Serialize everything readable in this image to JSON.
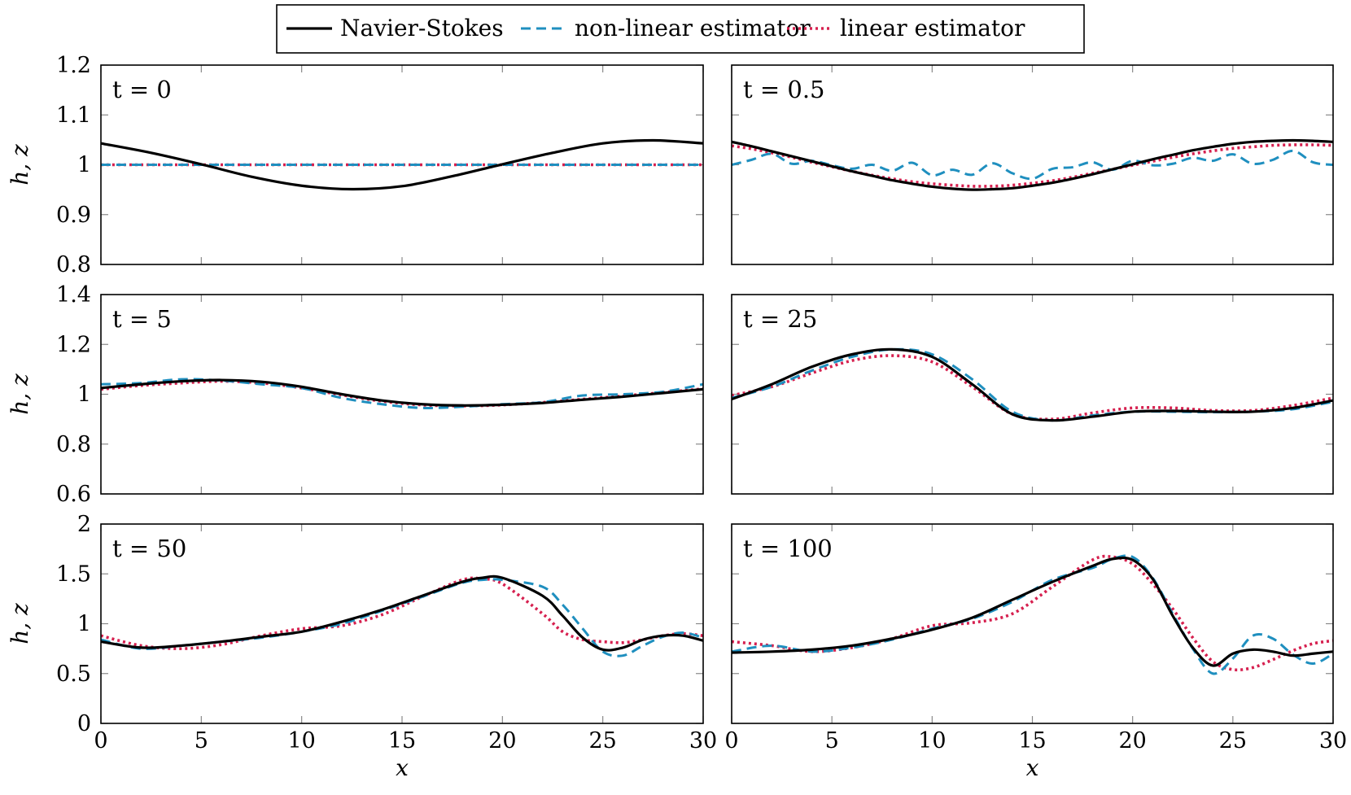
{
  "legend": {
    "placement": "top-center",
    "entries": [
      {
        "label": "Navier-Stokes",
        "color": "#000000",
        "dash": "solid"
      },
      {
        "label": "non-linear estimator",
        "color": "#1f8fbf",
        "dash": "dashed"
      },
      {
        "label": "linear estimator",
        "color": "#d6204f",
        "dash": "dotted"
      }
    ]
  },
  "chart_data": [
    {
      "type": "line",
      "panel_label": "t = 0",
      "xlim": [
        0,
        30
      ],
      "ylim": [
        0.8,
        1.2
      ],
      "xticks": [
        0,
        5,
        10,
        15,
        20,
        25,
        30
      ],
      "xtick_labels": [
        "",
        "",
        "",
        "",
        "",
        "",
        ""
      ],
      "yticks": [
        0.8,
        0.9,
        1.0,
        1.1,
        1.2
      ],
      "ytick_labels": [
        "0.8",
        "0.9",
        "1",
        "1.1",
        "1.2"
      ],
      "xlabel": "",
      "ylabel": "h, z",
      "grid": false,
      "x": [
        0,
        2.5,
        5,
        7.5,
        10,
        12.5,
        15,
        17.5,
        20,
        22.5,
        25,
        27.5,
        30
      ],
      "series": [
        {
          "name": "Navier-Stokes",
          "values": [
            1.043,
            1.024,
            1.001,
            0.976,
            0.958,
            0.951,
            0.957,
            0.977,
            1.001,
            1.024,
            1.043,
            1.049,
            1.043
          ]
        },
        {
          "name": "non-linear estimator",
          "values": [
            1,
            1,
            1,
            1,
            1,
            1,
            1,
            1,
            1,
            1,
            1,
            1,
            1
          ]
        },
        {
          "name": "linear estimator",
          "values": [
            1,
            1,
            1,
            1,
            1,
            1,
            1,
            1,
            1,
            1,
            1,
            1,
            1
          ]
        }
      ]
    },
    {
      "type": "line",
      "panel_label": "t = 0.5",
      "xlim": [
        0,
        30
      ],
      "ylim": [
        0.8,
        1.2
      ],
      "xticks": [
        0,
        5,
        10,
        15,
        20,
        25,
        30
      ],
      "xtick_labels": [
        "",
        "",
        "",
        "",
        "",
        "",
        ""
      ],
      "yticks": [
        0.8,
        0.9,
        1.0,
        1.1,
        1.2
      ],
      "ytick_labels": [
        "",
        "",
        "",
        "",
        ""
      ],
      "xlabel": "",
      "ylabel": "",
      "grid": false,
      "x": [
        0,
        1,
        2,
        3,
        4,
        5,
        6,
        7,
        8,
        9,
        10,
        11,
        12,
        13,
        14,
        15,
        16,
        17,
        18,
        19,
        20,
        21,
        22,
        23,
        24,
        25,
        26,
        27,
        28,
        29,
        30
      ],
      "series": [
        {
          "name": "Navier-Stokes",
          "values": [
            1.046,
            1.037,
            1.027,
            1.017,
            1.007,
            0.997,
            0.987,
            0.978,
            0.969,
            0.962,
            0.956,
            0.952,
            0.95,
            0.951,
            0.953,
            0.958,
            0.964,
            0.972,
            0.981,
            0.991,
            1.001,
            1.011,
            1.02,
            1.029,
            1.036,
            1.042,
            1.046,
            1.048,
            1.049,
            1.048,
            1.046
          ]
        },
        {
          "name": "non-linear estimator",
          "values": [
            1.0,
            1.01,
            1.022,
            1.002,
            1.008,
            0.999,
            0.992,
            1.0,
            0.988,
            1.004,
            0.979,
            0.99,
            0.98,
            1.003,
            0.983,
            0.972,
            0.992,
            0.995,
            1.005,
            0.99,
            1.008,
            0.999,
            1.002,
            1.014,
            1.008,
            1.021,
            1.002,
            1.01,
            1.028,
            1.005,
            1.0
          ]
        },
        {
          "name": "linear estimator",
          "values": [
            1.038,
            1.032,
            1.024,
            1.015,
            1.005,
            0.996,
            0.987,
            0.979,
            0.972,
            0.966,
            0.962,
            0.959,
            0.957,
            0.957,
            0.959,
            0.963,
            0.968,
            0.975,
            0.983,
            0.991,
            0.999,
            1.007,
            1.015,
            1.022,
            1.028,
            1.033,
            1.036,
            1.039,
            1.04,
            1.04,
            1.039
          ]
        }
      ]
    },
    {
      "type": "line",
      "panel_label": "t = 5",
      "xlim": [
        0,
        30
      ],
      "ylim": [
        0.6,
        1.4
      ],
      "xticks": [
        0,
        5,
        10,
        15,
        20,
        25,
        30
      ],
      "xtick_labels": [
        "",
        "",
        "",
        "",
        "",
        "",
        ""
      ],
      "yticks": [
        0.6,
        0.8,
        1.0,
        1.2,
        1.4
      ],
      "ytick_labels": [
        "0.6",
        "0.8",
        "1",
        "1.2",
        "1.4"
      ],
      "xlabel": "",
      "ylabel": "h, z",
      "grid": false,
      "x": [
        0,
        2,
        4,
        6,
        8,
        10,
        12,
        14,
        16,
        18,
        20,
        22,
        24,
        26,
        28,
        30
      ],
      "series": [
        {
          "name": "Navier-Stokes",
          "values": [
            1.025,
            1.04,
            1.052,
            1.057,
            1.05,
            1.03,
            1.0,
            0.975,
            0.96,
            0.955,
            0.958,
            0.965,
            0.978,
            0.99,
            1.005,
            1.02
          ]
        },
        {
          "name": "non-linear estimator",
          "values": [
            1.04,
            1.045,
            1.06,
            1.055,
            1.04,
            1.025,
            0.985,
            0.96,
            0.945,
            0.95,
            0.96,
            0.968,
            0.995,
            1.0,
            1.01,
            1.04
          ]
        },
        {
          "name": "linear estimator",
          "values": [
            1.02,
            1.035,
            1.045,
            1.052,
            1.045,
            1.025,
            0.997,
            0.972,
            0.957,
            0.953,
            0.957,
            0.967,
            0.98,
            0.993,
            1.007,
            1.022
          ]
        }
      ]
    },
    {
      "type": "line",
      "panel_label": "t = 25",
      "xlim": [
        0,
        30
      ],
      "ylim": [
        0.6,
        1.4
      ],
      "xticks": [
        0,
        5,
        10,
        15,
        20,
        25,
        30
      ],
      "xtick_labels": [
        "",
        "",
        "",
        "",
        "",
        "",
        ""
      ],
      "yticks": [
        0.6,
        0.8,
        1.0,
        1.2,
        1.4
      ],
      "ytick_labels": [
        "",
        "",
        "",
        "",
        ""
      ],
      "xlabel": "",
      "ylabel": "",
      "grid": false,
      "x": [
        0,
        2,
        4,
        6,
        8,
        10,
        12,
        14,
        16,
        18,
        20,
        22,
        24,
        26,
        28,
        30
      ],
      "series": [
        {
          "name": "Navier-Stokes",
          "values": [
            0.98,
            1.04,
            1.11,
            1.16,
            1.18,
            1.15,
            1.04,
            0.92,
            0.895,
            0.91,
            0.93,
            0.933,
            0.93,
            0.93,
            0.945,
            0.975
          ]
        },
        {
          "name": "non-linear estimator",
          "values": [
            0.985,
            1.03,
            1.095,
            1.15,
            1.18,
            1.16,
            1.06,
            0.93,
            0.895,
            0.915,
            0.93,
            0.93,
            0.928,
            0.93,
            0.94,
            0.97
          ]
        },
        {
          "name": "linear estimator",
          "values": [
            0.995,
            1.03,
            1.085,
            1.135,
            1.155,
            1.13,
            1.03,
            0.92,
            0.9,
            0.925,
            0.945,
            0.945,
            0.935,
            0.935,
            0.955,
            0.985
          ]
        }
      ]
    },
    {
      "type": "line",
      "panel_label": "t = 50",
      "xlim": [
        0,
        30
      ],
      "ylim": [
        0,
        2
      ],
      "xticks": [
        0,
        5,
        10,
        15,
        20,
        25,
        30
      ],
      "xtick_labels": [
        "0",
        "5",
        "10",
        "15",
        "20",
        "25",
        "30"
      ],
      "yticks": [
        0,
        0.5,
        1.0,
        1.5,
        2.0
      ],
      "ytick_labels": [
        "0",
        "0.5",
        "1",
        "1.5",
        "2"
      ],
      "xlabel": "x",
      "ylabel": "h, z",
      "grid": false,
      "x": [
        0,
        2,
        4,
        6,
        8,
        10,
        12,
        14,
        16,
        18,
        19,
        20,
        22,
        23,
        24,
        25,
        26,
        27,
        28,
        29,
        30
      ],
      "series": [
        {
          "name": "Navier-Stokes",
          "values": [
            0.82,
            0.76,
            0.78,
            0.82,
            0.87,
            0.92,
            1.02,
            1.14,
            1.28,
            1.42,
            1.46,
            1.46,
            1.28,
            1.08,
            0.86,
            0.74,
            0.76,
            0.84,
            0.88,
            0.88,
            0.83
          ]
        },
        {
          "name": "non-linear estimator",
          "values": [
            0.84,
            0.75,
            0.78,
            0.82,
            0.86,
            0.92,
            1.0,
            1.13,
            1.27,
            1.41,
            1.44,
            1.44,
            1.37,
            1.19,
            0.95,
            0.72,
            0.68,
            0.78,
            0.87,
            0.91,
            0.86
          ]
        },
        {
          "name": "linear estimator",
          "values": [
            0.88,
            0.78,
            0.75,
            0.79,
            0.88,
            0.95,
            0.98,
            1.09,
            1.27,
            1.44,
            1.45,
            1.4,
            1.1,
            0.92,
            0.84,
            0.82,
            0.81,
            0.84,
            0.88,
            0.9,
            0.88
          ]
        }
      ]
    },
    {
      "type": "line",
      "panel_label": "t = 100",
      "xlim": [
        0,
        30
      ],
      "ylim": [
        0,
        2
      ],
      "xticks": [
        0,
        5,
        10,
        15,
        20,
        25,
        30
      ],
      "xtick_labels": [
        "0",
        "5",
        "10",
        "15",
        "20",
        "25",
        "30"
      ],
      "yticks": [
        0,
        0.5,
        1.0,
        1.5,
        2.0
      ],
      "ytick_labels": [
        "",
        "",
        "",
        "",
        ""
      ],
      "xlabel": "x",
      "ylabel": "",
      "grid": false,
      "x": [
        0,
        2,
        4,
        6,
        8,
        10,
        12,
        14,
        16,
        18,
        19,
        20,
        21,
        22,
        23,
        24,
        25,
        26,
        27,
        28,
        29,
        30
      ],
      "series": [
        {
          "name": "Navier-Stokes",
          "values": [
            0.71,
            0.72,
            0.74,
            0.78,
            0.85,
            0.94,
            1.06,
            1.24,
            1.42,
            1.58,
            1.65,
            1.64,
            1.45,
            1.08,
            0.76,
            0.58,
            0.7,
            0.74,
            0.72,
            0.68,
            0.7,
            0.72
          ]
        },
        {
          "name": "non-linear estimator",
          "values": [
            0.72,
            0.78,
            0.72,
            0.76,
            0.84,
            0.95,
            1.05,
            1.22,
            1.44,
            1.56,
            1.65,
            1.67,
            1.46,
            1.1,
            0.75,
            0.5,
            0.65,
            0.88,
            0.85,
            0.69,
            0.6,
            0.7
          ]
        },
        {
          "name": "linear estimator",
          "values": [
            0.82,
            0.78,
            0.72,
            0.76,
            0.85,
            0.98,
            1.01,
            1.1,
            1.37,
            1.64,
            1.67,
            1.6,
            1.4,
            1.15,
            0.86,
            0.62,
            0.54,
            0.56,
            0.64,
            0.73,
            0.8,
            0.83
          ]
        }
      ]
    }
  ]
}
